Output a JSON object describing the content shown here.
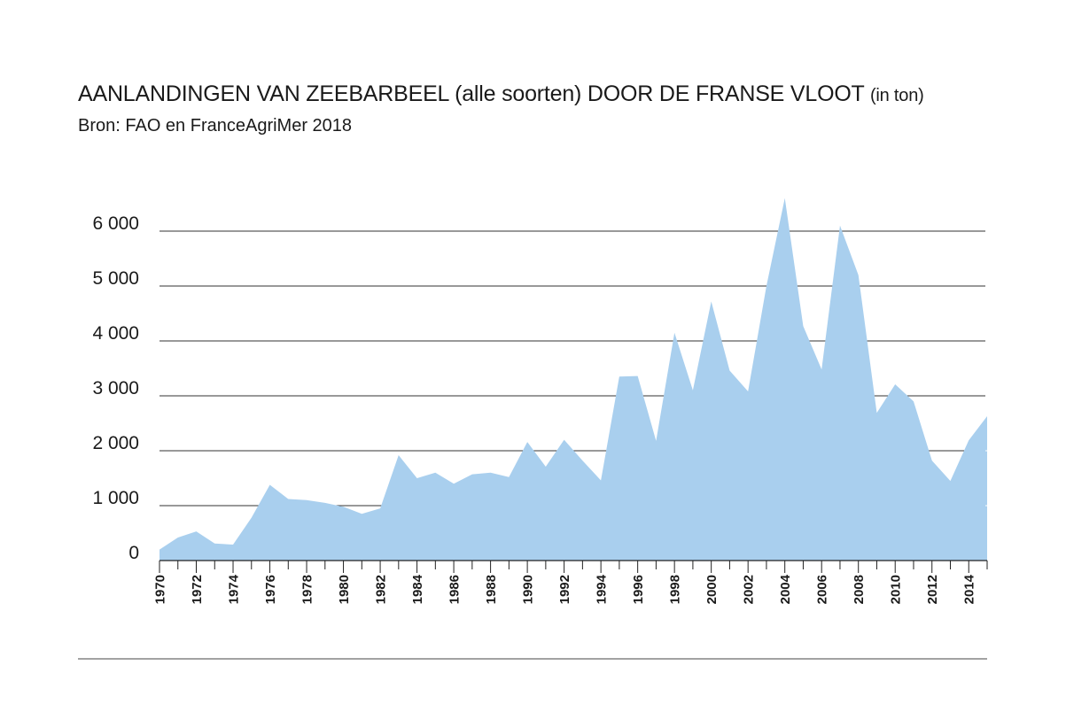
{
  "title": "AANLANDINGEN VAN ZEEBARBEEL (alle soorten) DOOR DE FRANSE VLOOT",
  "title_unit": "(in ton)",
  "subtitle": "Bron: FAO en FranceAgriMer 2018",
  "colors": {
    "area": "#a9cfee",
    "grid": "#333333",
    "text": "#1a1a1a"
  },
  "chart_data": {
    "type": "area",
    "title": "AANLANDINGEN VAN ZEEBARBEEL (alle soorten) DOOR DE FRANSE VLOOT",
    "subtitle": "Bron: FAO en FranceAgriMer 2018",
    "unit": "in ton",
    "x": [
      1970,
      1971,
      1972,
      1973,
      1974,
      1975,
      1976,
      1977,
      1978,
      1979,
      1980,
      1981,
      1982,
      1983,
      1984,
      1985,
      1986,
      1987,
      1988,
      1989,
      1990,
      1991,
      1992,
      1993,
      1994,
      1995,
      1996,
      1997,
      1998,
      1999,
      2000,
      2001,
      2002,
      2003,
      2004,
      2005,
      2006,
      2007,
      2008,
      2009,
      2010,
      2011,
      2012,
      2013,
      2014,
      2015
    ],
    "values": [
      200,
      420,
      530,
      310,
      290,
      780,
      1380,
      1120,
      1100,
      1050,
      980,
      850,
      950,
      1920,
      1500,
      1600,
      1400,
      1570,
      1600,
      1520,
      2160,
      1710,
      2200,
      1820,
      1460,
      3350,
      3360,
      2180,
      4150,
      3100,
      4720,
      3460,
      3080,
      5000,
      6600,
      4270,
      3480,
      6100,
      5200,
      2690,
      3210,
      2900,
      1820,
      1450,
      2190,
      2630
    ],
    "ylim": [
      0,
      6000
    ],
    "yticks": [
      0,
      1000,
      2000,
      3000,
      4000,
      5000,
      6000
    ],
    "ytick_labels": [
      "0",
      "1 000",
      "2 000",
      "3 000",
      "4 000",
      "5 000",
      "6 000"
    ],
    "xtick_labels": [
      "1970",
      "1972",
      "1974",
      "1976",
      "1978",
      "1980",
      "1982",
      "1984",
      "1986",
      "1988",
      "1990",
      "1992",
      "1994",
      "1996",
      "1998",
      "2000",
      "2002",
      "2004",
      "2006",
      "2008",
      "2010",
      "2012",
      "2014"
    ],
    "xlabel": "",
    "ylabel": "",
    "grid": true,
    "legend": "none"
  }
}
